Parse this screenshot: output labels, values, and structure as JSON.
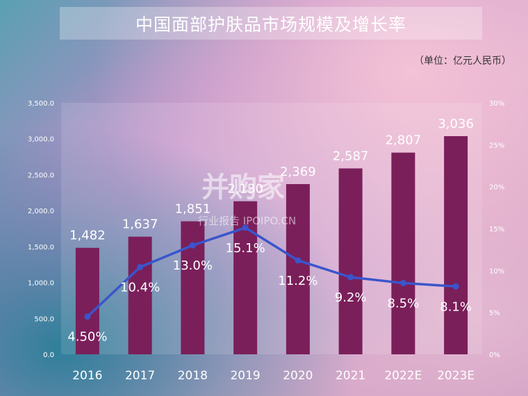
{
  "chart_data": {
    "type": "bar",
    "title": "中国面部护肤品市场规模及增长率",
    "unit_note": "（单位：亿元人民币）",
    "categories": [
      "2016",
      "2017",
      "2018",
      "2019",
      "2020",
      "2021",
      "2022E",
      "2023E"
    ],
    "series": [
      {
        "type": "bar",
        "values": [
          1482,
          1637,
          1851,
          2130,
          2369,
          2587,
          2807,
          3036
        ],
        "value_labels": [
          "1,482",
          "1,637",
          "1,851",
          "2,130",
          "2,369",
          "2,587",
          "2,807",
          "3,036"
        ],
        "color": "#7a1f5a",
        "axis": "left"
      },
      {
        "type": "line",
        "values": [
          4.5,
          10.4,
          13.0,
          15.1,
          11.2,
          9.2,
          8.5,
          8.1
        ],
        "value_labels": [
          "4.50%",
          "10.4%",
          "13.0%",
          "15.1%",
          "11.2%",
          "9.2%",
          "8.5%",
          "8.1%"
        ],
        "color": "#3a55cc",
        "axis": "right"
      }
    ],
    "ylim": [
      0,
      3500
    ],
    "y_ticks": [
      "0.0",
      "500.0",
      "1,000.0",
      "1,500.0",
      "2,000.0",
      "2,500.0",
      "3,000.0",
      "3,500.0"
    ],
    "y2lim": [
      0,
      30
    ],
    "y2_ticks": [
      "0%",
      "5%",
      "10%",
      "15%",
      "20%",
      "25%",
      "30%"
    ],
    "grid": false,
    "legend": "none"
  },
  "watermark": {
    "brand": "并购家",
    "sub": "行业报告 IPOIPO.CN"
  }
}
